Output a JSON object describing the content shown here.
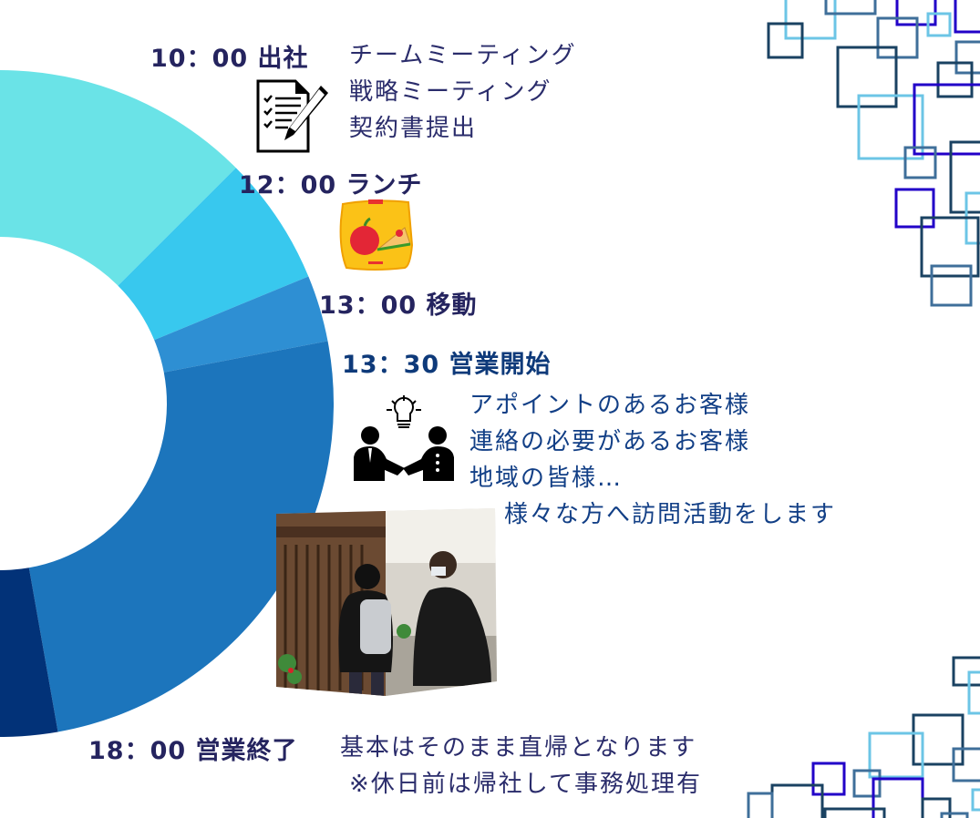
{
  "colors": {
    "heading": "#25245f",
    "heading_sales": "#0e3a7a",
    "body_text": "#2a2c6b",
    "body_text_sales": "#123f86",
    "donut_segments": [
      "#6ae3e7",
      "#38c8ee",
      "#2e8fd3",
      "#1c75bc",
      "#023278"
    ],
    "squares": [
      "#1a4262",
      "#3f6f9a",
      "#6cc5e6",
      "#2200c8"
    ]
  },
  "schedule": [
    {
      "time_label": "10：00 出社",
      "icon": "document-pen-icon",
      "details": [
        "チームミーティング",
        "戦略ミーティング",
        "契約書提出"
      ]
    },
    {
      "time_label": "12：00 ランチ",
      "icon": "lunchbox-icon"
    },
    {
      "time_label": "13：00 移動"
    },
    {
      "time_label": "13：30 営業開始",
      "icon": "handshake-idea-icon",
      "details": [
        "アポイントのあるお客様",
        "連絡の必要があるお客様",
        "地域の皆様…",
        "様々な方へ訪問活動をします"
      ]
    },
    {
      "time_label": "18：00 営業終了",
      "details": [
        "基本はそのまま直帰となります",
        "※休日前は帰社して事務処理有"
      ]
    }
  ]
}
